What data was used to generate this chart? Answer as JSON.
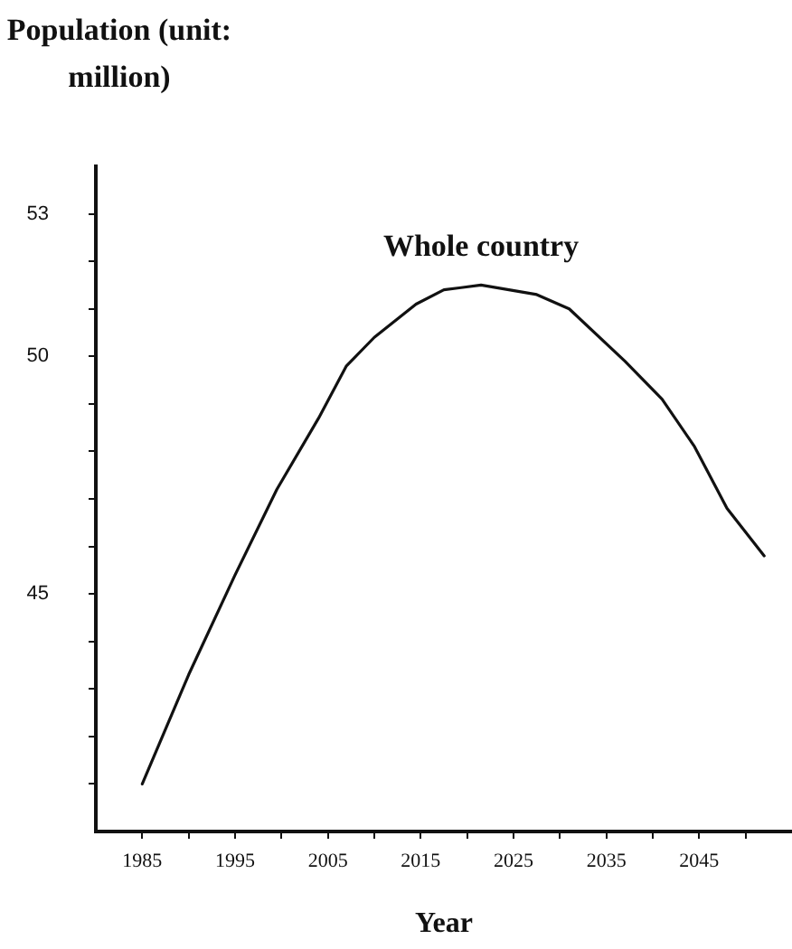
{
  "chart_data": {
    "type": "line",
    "ylabel": "Population (unit: million)",
    "xlabel": "Year",
    "xlim": [
      1980,
      2055
    ],
    "xticks": [
      {
        "value": 1985,
        "label": "1985"
      },
      {
        "value": 1990,
        "label": null
      },
      {
        "value": 1995,
        "label": "1995"
      },
      {
        "value": 2000,
        "label": null
      },
      {
        "value": 2005,
        "label": "2005"
      },
      {
        "value": 2010,
        "label": null
      },
      {
        "value": 2015,
        "label": "2015"
      },
      {
        "value": 2020,
        "label": null
      },
      {
        "value": 2025,
        "label": "2025"
      },
      {
        "value": 2030,
        "label": null
      },
      {
        "value": 2035,
        "label": "2035"
      },
      {
        "value": 2040,
        "label": null
      },
      {
        "value": 2045,
        "label": "2045"
      },
      {
        "value": 2050,
        "label": null
      }
    ],
    "ylim": [
      40,
      54
    ],
    "yticks": [
      {
        "value": 41,
        "label": null
      },
      {
        "value": 42,
        "label": null
      },
      {
        "value": 43,
        "label": null
      },
      {
        "value": 44,
        "label": null
      },
      45,
      {
        "value": 46,
        "label": null
      },
      {
        "value": 47,
        "label": null
      },
      {
        "value": 48,
        "label": null
      },
      {
        "value": 49,
        "label": null
      },
      50,
      {
        "value": 51,
        "label": null
      },
      {
        "value": 52,
        "label": null
      },
      53
    ],
    "marker": "none",
    "line_style": "solid",
    "x": [
      1985,
      1990,
      1995,
      1999.5,
      2004,
      2007,
      2010,
      2014.5,
      2017.5,
      2021.5,
      2024.5,
      2027.5,
      2031,
      2037,
      2041,
      2044.5,
      2048,
      2052
    ],
    "series": [
      {
        "name": "Whole country",
        "color": "#111111",
        "values": [
          41.0,
          43.3,
          45.4,
          47.2,
          48.7,
          49.8,
          50.4,
          51.1,
          51.4,
          51.5,
          51.4,
          51.3,
          51.0,
          49.9,
          49.1,
          48.1,
          46.8,
          45.8
        ]
      }
    ]
  }
}
